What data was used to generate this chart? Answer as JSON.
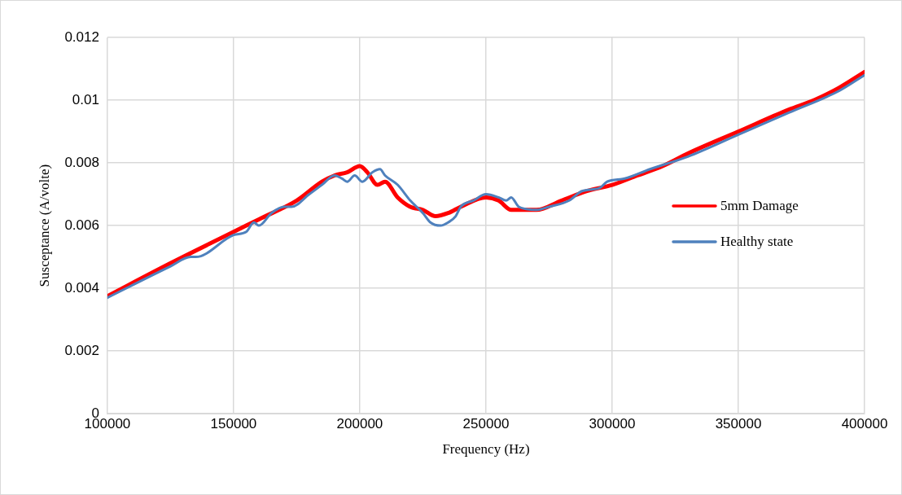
{
  "chart_data": {
    "type": "line",
    "xlabel": "Frequency (Hz)",
    "ylabel": "Susceptance (A/volte)",
    "xlim": [
      100000,
      400000
    ],
    "xticks": [
      100000,
      150000,
      200000,
      250000,
      300000,
      350000,
      400000
    ],
    "ylim": [
      0,
      0.012
    ],
    "yticks": [
      0,
      0.002,
      0.004,
      0.006,
      0.008,
      0.01,
      0.012
    ],
    "grid": true,
    "legend": "right",
    "marker": "none",
    "line_style": "solid",
    "series": [
      {
        "name": "5mm Damage",
        "color": "#ff0000",
        "x": [
          100000,
          125000,
          150000,
          160000,
          175000,
          185000,
          190000,
          195000,
          200000,
          203000,
          207000,
          210000,
          215000,
          220000,
          225000,
          230000,
          235000,
          240000,
          250000,
          255000,
          260000,
          270000,
          280000,
          290000,
          300000,
          310000,
          320000,
          330000,
          350000,
          370000,
          380000,
          390000,
          400000
        ],
        "values": [
          0.00375,
          0.0048,
          0.0058,
          0.0062,
          0.0068,
          0.0074,
          0.0076,
          0.0077,
          0.0079,
          0.0077,
          0.0073,
          0.0074,
          0.0069,
          0.0066,
          0.0065,
          0.0063,
          0.0064,
          0.0066,
          0.0069,
          0.0068,
          0.0065,
          0.0065,
          0.0068,
          0.0071,
          0.0073,
          0.0076,
          0.0079,
          0.0083,
          0.009,
          0.0097,
          0.01,
          0.0104,
          0.0109
        ]
      },
      {
        "name": "Healthy state",
        "color": "#4f81bd",
        "x": [
          100000,
          125000,
          133000,
          135000,
          150000,
          155000,
          158000,
          160000,
          165000,
          170000,
          173000,
          180000,
          185000,
          190000,
          193000,
          195000,
          198000,
          201000,
          205000,
          208000,
          210000,
          215000,
          220000,
          225000,
          228000,
          232000,
          235000,
          238000,
          240000,
          245000,
          250000,
          255000,
          258000,
          260000,
          263000,
          270000,
          275000,
          283000,
          288000,
          295000,
          298000,
          305000,
          315000,
          330000,
          350000,
          370000,
          390000,
          400000
        ],
        "values": [
          0.0037,
          0.0047,
          0.005,
          0.005,
          0.0057,
          0.0058,
          0.0061,
          0.006,
          0.0064,
          0.0066,
          0.0066,
          0.007,
          0.0073,
          0.0076,
          0.0075,
          0.0074,
          0.0076,
          0.0074,
          0.0077,
          0.0078,
          0.0076,
          0.0073,
          0.0068,
          0.0064,
          0.0061,
          0.006,
          0.0061,
          0.0063,
          0.0066,
          0.0068,
          0.007,
          0.0069,
          0.0068,
          0.0069,
          0.0066,
          0.0065,
          0.0066,
          0.0068,
          0.0071,
          0.0072,
          0.0074,
          0.0075,
          0.0078,
          0.0082,
          0.0089,
          0.0096,
          0.0103,
          0.0108
        ]
      }
    ]
  }
}
